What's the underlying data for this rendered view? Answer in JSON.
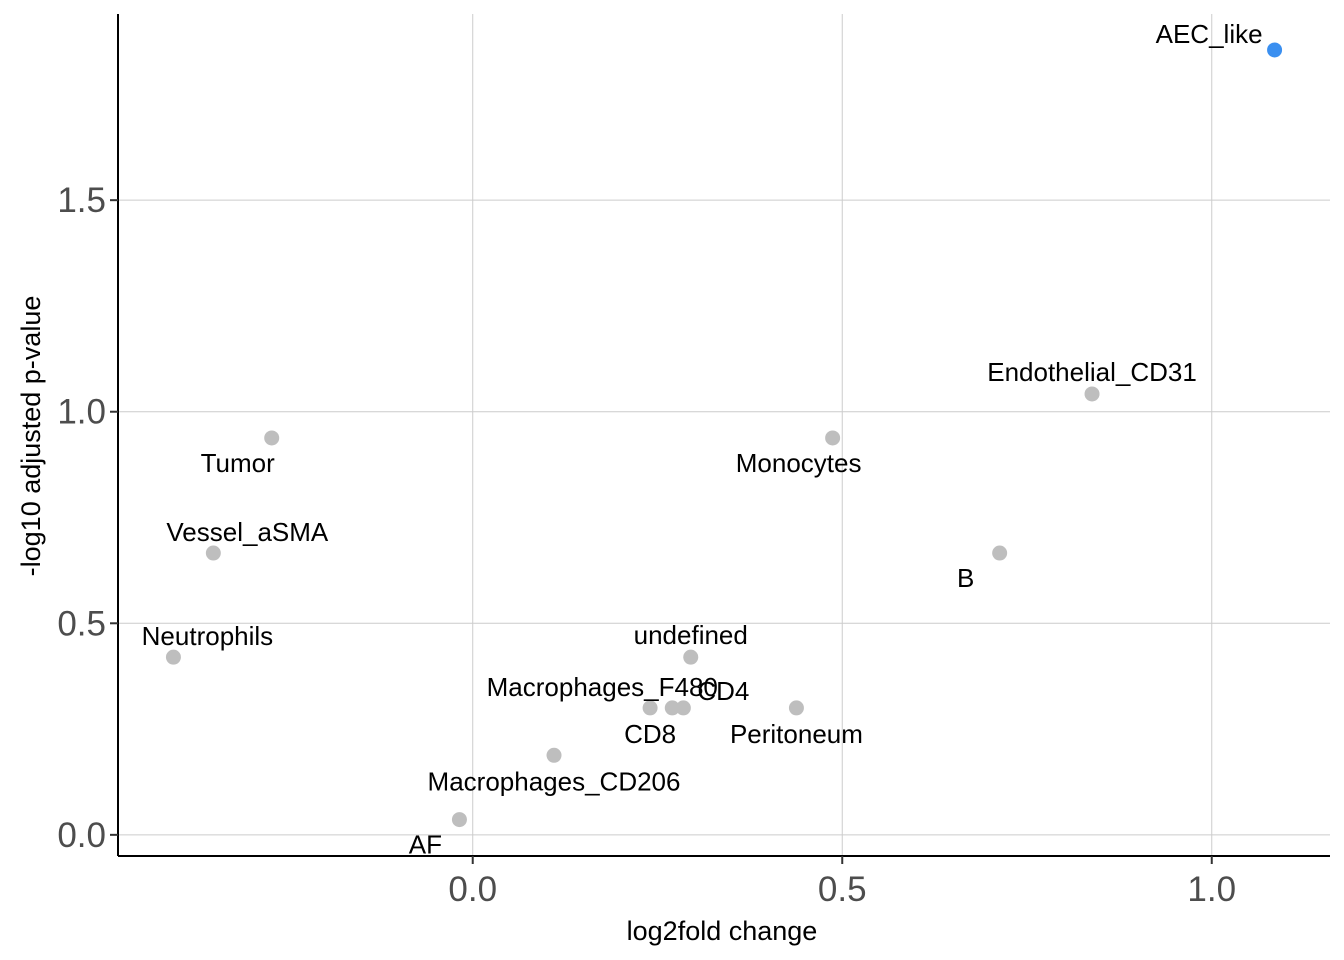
{
  "chart_data": {
    "type": "scatter",
    "title": "",
    "xlabel": "log2fold change",
    "ylabel": "-log10 adjusted p-value",
    "xlim": [
      -0.48,
      1.16
    ],
    "ylim": [
      -0.05,
      1.94
    ],
    "x_ticks": [
      0.0,
      0.5,
      1.0
    ],
    "y_ticks": [
      0.0,
      0.5,
      1.0,
      1.5
    ],
    "x_tick_labels": [
      "0.0",
      "0.5",
      "1.0"
    ],
    "y_tick_labels": [
      "0.0",
      "0.5",
      "1.0",
      "1.5"
    ],
    "grid": true,
    "colors": {
      "default": "#bebebe",
      "highlight": "#3a8ff0",
      "grid": "#cccccc",
      "tick_text": "#4d4d4d"
    },
    "points": [
      {
        "label": "AEC_like",
        "x": 1.085,
        "y": 1.855,
        "highlight": true,
        "label_pos": "left"
      },
      {
        "label": "Endothelial_CD31",
        "x": 0.838,
        "y": 1.042,
        "label_pos": "top"
      },
      {
        "label": "Tumor",
        "x": -0.272,
        "y": 0.938,
        "label_pos": "bottom-left"
      },
      {
        "label": "Monocytes",
        "x": 0.487,
        "y": 0.938,
        "label_pos": "bottom-left"
      },
      {
        "label": "Vessel_aSMA",
        "x": -0.351,
        "y": 0.666,
        "label_pos": "top-right"
      },
      {
        "label": "B",
        "x": 0.713,
        "y": 0.666,
        "label_pos": "bottom-left"
      },
      {
        "label": "Neutrophils",
        "x": -0.405,
        "y": 0.42,
        "label_pos": "top-right"
      },
      {
        "label": "undefined",
        "x": 0.295,
        "y": 0.42,
        "label_pos": "top"
      },
      {
        "label": "Macrophages_F480",
        "x": 0.27,
        "y": 0.3,
        "label_pos": "top-left"
      },
      {
        "label": "CD4",
        "x": 0.285,
        "y": 0.3,
        "label_pos": "right"
      },
      {
        "label": "CD8",
        "x": 0.24,
        "y": 0.3,
        "label_pos": "bottom"
      },
      {
        "label": "Peritoneum",
        "x": 0.438,
        "y": 0.3,
        "label_pos": "bottom"
      },
      {
        "label": "Macrophages_CD206",
        "x": 0.11,
        "y": 0.188,
        "label_pos": "bottom"
      },
      {
        "label": "AF",
        "x": -0.018,
        "y": 0.036,
        "label_pos": "bottom-left"
      }
    ]
  }
}
